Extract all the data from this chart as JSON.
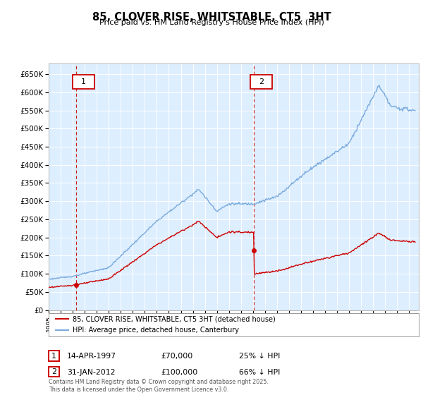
{
  "title": "85, CLOVER RISE, WHITSTABLE, CT5  3HT",
  "subtitle": "Price paid vs. HM Land Registry's House Price Index (HPI)",
  "legend_line1": "85, CLOVER RISE, WHITSTABLE, CT5 3HT (detached house)",
  "legend_line2": "HPI: Average price, detached house, Canterbury",
  "sale1_date": "14-APR-1997",
  "sale1_price": "£70,000",
  "sale1_hpi": "25% ↓ HPI",
  "sale2_date": "31-JAN-2012",
  "sale2_price": "£100,000",
  "sale2_hpi": "66% ↓ HPI",
  "footnote": "Contains HM Land Registry data © Crown copyright and database right 2025.\nThis data is licensed under the Open Government Licence v3.0.",
  "red_color": "#cc0000",
  "blue_color": "#7aaadd",
  "bg_color": "#ddeeff",
  "grid_color": "#ffffff",
  "ylim_min": 0,
  "ylim_max": 680000,
  "sale1_year": 1997.29,
  "sale2_year": 2012.08
}
